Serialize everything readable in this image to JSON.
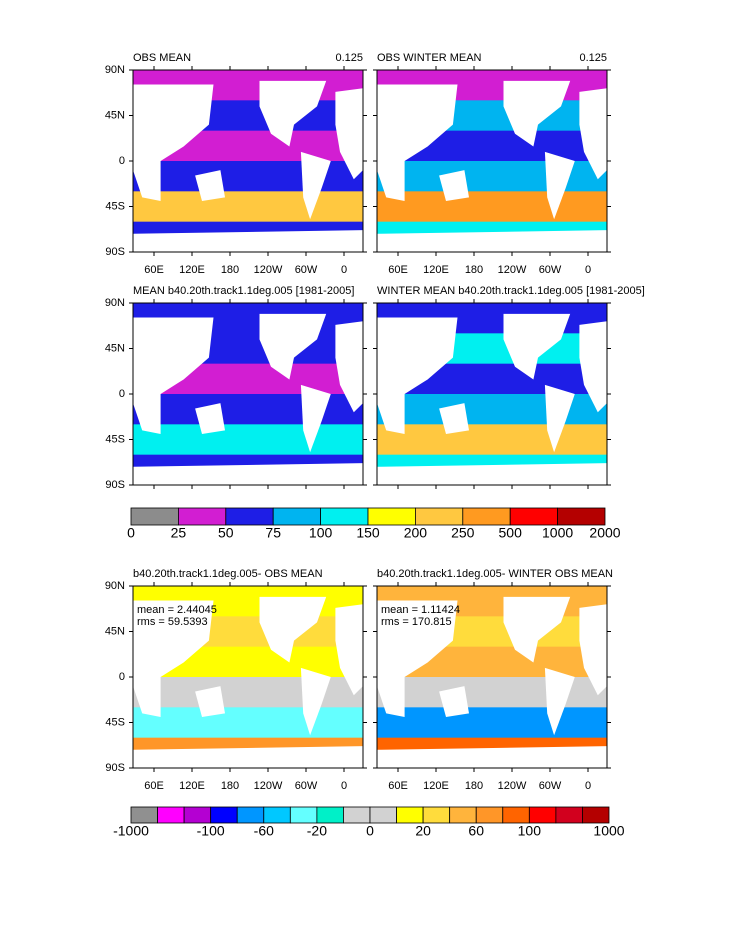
{
  "panels": [
    {
      "title": "OBS MEAN",
      "right_label": "0.125"
    },
    {
      "title": "OBS WINTER MEAN",
      "right_label": "0.125"
    },
    {
      "title": "MEAN b40.20th.track1.1deg.005 [1981-2005]"
    },
    {
      "title": "WINTER MEAN b40.20th.track1.1deg.005 [1981-2005]"
    },
    {
      "title": "b40.20th.track1.1deg.005- OBS MEAN",
      "stats": [
        "mean = 2.44045",
        "rms = 59.5393"
      ]
    },
    {
      "title": "b40.20th.track1.1deg.005- WINTER OBS MEAN",
      "stats": [
        "mean = 1.11424",
        "rms = 170.815"
      ]
    }
  ],
  "lat_labels": [
    "90N",
    "45N",
    "0",
    "45S",
    "90S"
  ],
  "lon_labels": [
    "60E",
    "120E",
    "180",
    "120W",
    "60W",
    "0"
  ],
  "colorbars": [
    {
      "colors": [
        "#8c8c8c",
        "#d21ed2",
        "#1e1ee6",
        "#00b4f0",
        "#00f0f0",
        "#ffff00",
        "#ffc840",
        "#ff9a20",
        "#ff0000",
        "#b40000"
      ],
      "labels": [
        0,
        25,
        50,
        75,
        100,
        150,
        200,
        250,
        500,
        1000,
        2000
      ]
    },
    {
      "colors": [
        "#909090",
        "#ff00ff",
        "#b400d2",
        "#0000ff",
        "#0096ff",
        "#00c8ff",
        "#64ffff",
        "#00f0c8",
        "#d2d2d2",
        "#d2d2d2",
        "#ffff00",
        "#ffdc3c",
        "#ffb43c",
        "#ff9628",
        "#ff6400",
        "#ff0000",
        "#d2001e",
        "#b40000"
      ],
      "labels": [
        -1000,
        -100,
        -60,
        -20,
        0,
        20,
        60,
        100,
        1000
      ]
    }
  ]
}
